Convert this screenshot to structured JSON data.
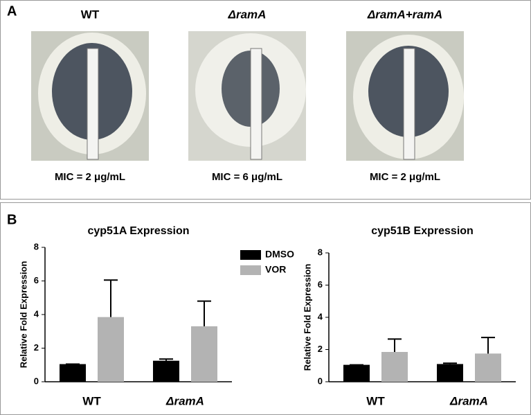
{
  "panel_a": {
    "label": "A",
    "plates": [
      {
        "title": "WT",
        "mic": "MIC = 2 μg/mL"
      },
      {
        "title": "ΔramA",
        "mic": "MIC = 6 μg/mL"
      },
      {
        "title": "ΔramA+ramA",
        "mic": "MIC = 2 μg/mL"
      }
    ]
  },
  "panel_b": {
    "label": "B"
  },
  "chart_data": [
    {
      "type": "bar",
      "title": "cyp51A Expression",
      "y_label": "Relative Fold  Expression",
      "categories": [
        "WT",
        "ΔramA"
      ],
      "series": [
        {
          "name": "DMSO",
          "color": "#000000",
          "values": [
            1.05,
            1.25
          ],
          "errors": [
            0,
            0.1
          ]
        },
        {
          "name": "VOR",
          "color": "#b3b3b3",
          "values": [
            3.85,
            3.3
          ],
          "errors": [
            2.2,
            1.5
          ]
        }
      ],
      "ylim": [
        0,
        8
      ],
      "yticks": [
        0,
        2,
        4,
        6,
        8
      ],
      "legend": "right"
    },
    {
      "type": "bar",
      "title": "cyp51B Expression",
      "y_label": "Relative Fold Expression",
      "categories": [
        "WT",
        "ΔramA"
      ],
      "series": [
        {
          "name": "DMSO",
          "color": "#000000",
          "values": [
            1.05,
            1.1
          ],
          "errors": [
            0,
            0.05
          ]
        },
        {
          "name": "VOR",
          "color": "#b3b3b3",
          "values": [
            1.85,
            1.75
          ],
          "errors": [
            0.8,
            1.0
          ]
        }
      ],
      "ylim": [
        0,
        8
      ],
      "yticks": [
        0,
        2,
        4,
        6,
        8
      ]
    }
  ]
}
